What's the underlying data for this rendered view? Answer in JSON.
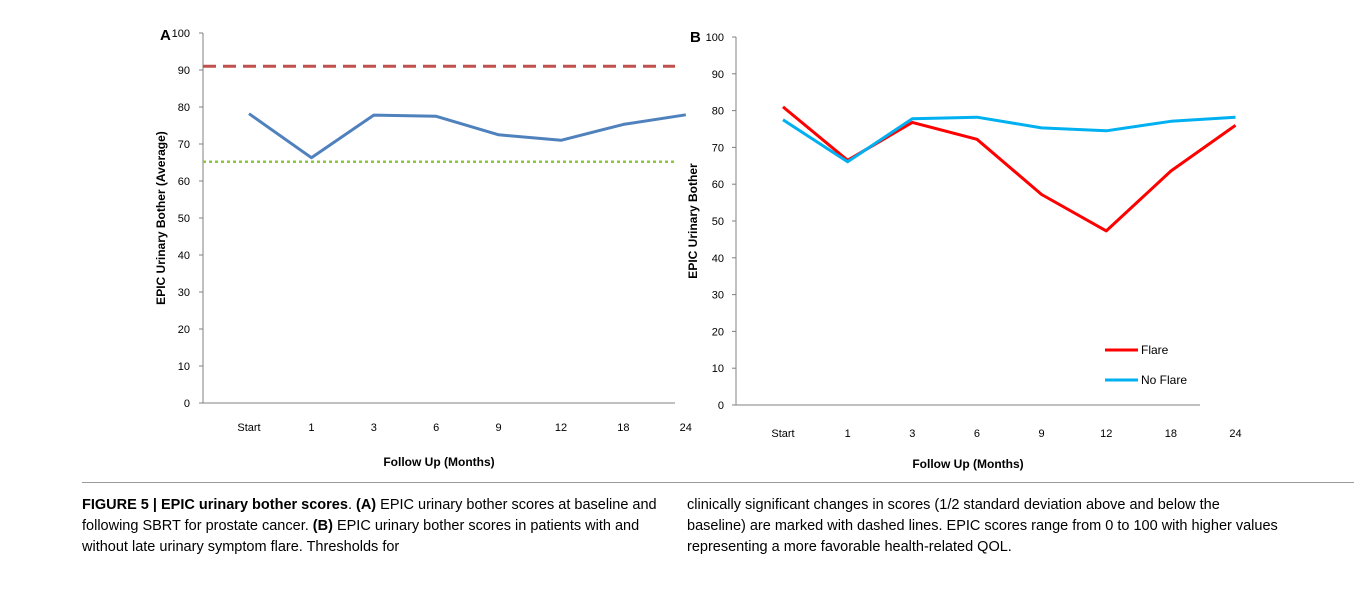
{
  "figure": {
    "caption_title": "FIGURE 5 | EPIC urinary bother scores",
    "caption_a_label": "(A)",
    "caption_a_text": " EPIC urinary bother scores at baseline and following SBRT for prostate cancer. ",
    "caption_b_label": "(B)",
    "caption_b_text": " EPIC urinary bother scores in patients with and without late urinary symptom flare. Thresholds for",
    "caption_right_text": "clinically significant changes in scores (1/2 standard deviation above and below the baseline) are marked with dashed lines. EPIC scores range from 0 to 100 with higher values representing a more favorable health-related QOL."
  },
  "chart_data": [
    {
      "panel": "A",
      "type": "line",
      "categories": [
        "Start",
        "1",
        "3",
        "6",
        "9",
        "12",
        "18",
        "24"
      ],
      "series": [
        {
          "values": [
            78.2,
            66.3,
            77.8,
            77.5,
            72.5,
            71.0,
            75.3,
            77.9
          ],
          "color": "#4f81bd",
          "style": "solid"
        }
      ],
      "reference_lines": [
        {
          "value": 91,
          "color": "#c0504d",
          "style": "dashed"
        },
        {
          "value": 65.2,
          "color": "#8dc63f",
          "style": "dotted"
        }
      ],
      "xlabel": "Follow Up (Months)",
      "ylabel": "EPIC Urinary Bother (Average)",
      "ylim": [
        0,
        100
      ],
      "yticks": [
        "0",
        "10",
        "20",
        "30",
        "40",
        "50",
        "60",
        "70",
        "80",
        "90",
        "100"
      ],
      "grid": false
    },
    {
      "panel": "B",
      "type": "line",
      "categories": [
        "Start",
        "1",
        "3",
        "6",
        "9",
        "12",
        "18",
        "24"
      ],
      "series": [
        {
          "name": "Flare",
          "values": [
            81.0,
            66.5,
            76.8,
            72.2,
            57.2,
            47.3,
            63.6,
            76.0
          ],
          "color": "#ff0000"
        },
        {
          "name": "No Flare",
          "values": [
            77.5,
            66.1,
            77.8,
            78.2,
            75.3,
            74.5,
            77.1,
            78.2
          ],
          "color": "#00b0f0"
        }
      ],
      "xlabel": "Follow Up (Months)",
      "ylabel": "EPIC Urinary Bother",
      "ylim": [
        0,
        100
      ],
      "yticks": [
        "0",
        "10",
        "20",
        "30",
        "40",
        "50",
        "60",
        "70",
        "80",
        "90",
        "100"
      ],
      "legend": "bottom-right",
      "grid": false
    }
  ]
}
